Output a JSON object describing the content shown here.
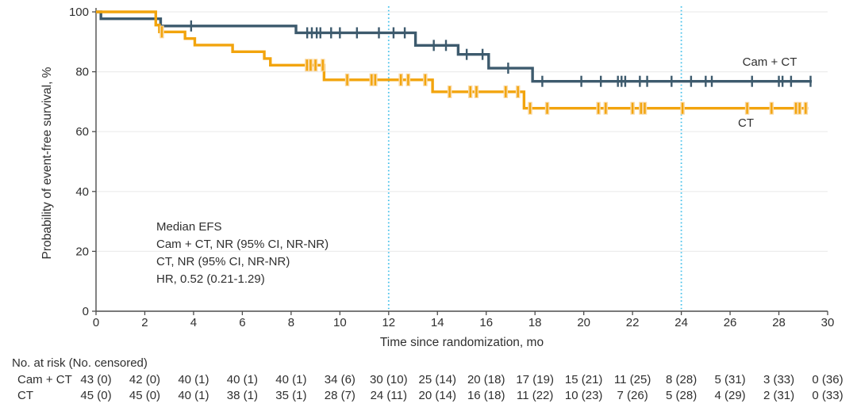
{
  "colors": {
    "camct": "#3d5a6d",
    "ct": "#f2a40d",
    "ct_halo": "#fad9a3",
    "reference_line": "#3fbfea",
    "gridline": "#ececec",
    "axis": "#4d4d4d",
    "text": "#2f2f2f"
  },
  "chart_data": {
    "type": "line",
    "subtype": "kaplan-meier-step",
    "title": "",
    "xlabel": "Time since randomization, mo",
    "ylabel": "Probability of event-free survival, %",
    "xlim": [
      0,
      30
    ],
    "ylim": [
      0,
      100
    ],
    "xticks": [
      0,
      2,
      4,
      6,
      8,
      10,
      12,
      14,
      16,
      18,
      20,
      22,
      24,
      26,
      28,
      30
    ],
    "yticks": [
      0,
      20,
      40,
      60,
      80,
      100
    ],
    "grid": "horizontal",
    "reference_lines_x": [
      12,
      24
    ],
    "legend_position": "end-of-curve-labels",
    "series": [
      {
        "name": "Cam + CT",
        "color_key": "camct",
        "steps": [
          [
            0,
            100
          ],
          [
            0.2,
            97.7
          ],
          [
            2.65,
            95.3
          ],
          [
            8.2,
            93.0
          ],
          [
            13.1,
            88.8
          ],
          [
            14.85,
            85.8
          ],
          [
            16.1,
            81.2
          ],
          [
            17.9,
            76.8
          ]
        ],
        "end_x": 29.35,
        "censor_marks": [
          [
            3.9,
            95.3
          ],
          [
            8.66,
            93.0
          ],
          [
            8.85,
            93.0
          ],
          [
            9.05,
            93.0
          ],
          [
            9.2,
            93.0
          ],
          [
            9.64,
            93.0
          ],
          [
            10.0,
            93.0
          ],
          [
            10.7,
            93.0
          ],
          [
            11.6,
            93.0
          ],
          [
            12.2,
            93.0
          ],
          [
            12.66,
            93.0
          ],
          [
            13.85,
            88.8
          ],
          [
            14.35,
            88.8
          ],
          [
            15.2,
            85.8
          ],
          [
            15.85,
            85.8
          ],
          [
            16.9,
            81.2
          ],
          [
            18.3,
            76.8
          ],
          [
            19.9,
            76.8
          ],
          [
            20.7,
            76.8
          ],
          [
            21.4,
            76.8
          ],
          [
            21.55,
            76.8
          ],
          [
            21.7,
            76.8
          ],
          [
            22.3,
            76.8
          ],
          [
            22.6,
            76.8
          ],
          [
            23.6,
            76.8
          ],
          [
            24.4,
            76.8
          ],
          [
            25.0,
            76.8
          ],
          [
            25.25,
            76.8
          ],
          [
            26.9,
            76.8
          ],
          [
            28.0,
            76.8
          ],
          [
            28.15,
            76.8
          ],
          [
            28.5,
            76.8
          ],
          [
            29.3,
            76.8
          ]
        ]
      },
      {
        "name": "CT",
        "color_key": "ct",
        "steps": [
          [
            0,
            100
          ],
          [
            2.45,
            95.6
          ],
          [
            2.6,
            93.3
          ],
          [
            3.65,
            91.1
          ],
          [
            4.05,
            88.9
          ],
          [
            5.6,
            86.7
          ],
          [
            6.9,
            84.4
          ],
          [
            7.15,
            82.2
          ],
          [
            9.35,
            77.3
          ],
          [
            13.8,
            73.3
          ],
          [
            17.55,
            67.8
          ]
        ],
        "end_x": 29.2,
        "censor_marks": [
          [
            2.7,
            93.3
          ],
          [
            8.65,
            82.2
          ],
          [
            8.8,
            82.2
          ],
          [
            9.0,
            82.2
          ],
          [
            9.3,
            82.2
          ],
          [
            10.3,
            77.3
          ],
          [
            11.3,
            77.3
          ],
          [
            11.45,
            77.3
          ],
          [
            12.5,
            77.3
          ],
          [
            12.8,
            77.3
          ],
          [
            13.5,
            77.3
          ],
          [
            14.5,
            73.3
          ],
          [
            15.35,
            73.3
          ],
          [
            15.6,
            73.3
          ],
          [
            16.8,
            73.3
          ],
          [
            17.3,
            73.3
          ],
          [
            17.8,
            67.8
          ],
          [
            18.5,
            67.8
          ],
          [
            20.6,
            67.8
          ],
          [
            20.9,
            67.8
          ],
          [
            22.0,
            67.8
          ],
          [
            22.35,
            67.8
          ],
          [
            22.5,
            67.8
          ],
          [
            24.05,
            67.8
          ],
          [
            26.7,
            67.8
          ],
          [
            27.7,
            67.8
          ],
          [
            28.7,
            67.8
          ],
          [
            28.85,
            67.8
          ],
          [
            29.1,
            67.8
          ]
        ]
      }
    ],
    "annotation": {
      "lines": [
        "Median EFS",
        "Cam + CT, NR (95% CI, NR-NR)",
        "CT, NR (95% CI, NR-NR)",
        "HR, 0.52 (0.21-1.29)"
      ]
    }
  },
  "risk_table": {
    "header": "No. at risk (No. censored)",
    "time_points": [
      0,
      2,
      4,
      6,
      8,
      10,
      12,
      14,
      16,
      18,
      20,
      22,
      24,
      26,
      28,
      30
    ],
    "rows": [
      {
        "label": "Cam + CT",
        "values": [
          "43 (0)",
          "42 (0)",
          "40 (1)",
          "40 (1)",
          "40 (1)",
          "34 (6)",
          "30 (10)",
          "25 (14)",
          "20 (18)",
          "17 (19)",
          "15 (21)",
          "11 (25)",
          "8 (28)",
          "5 (31)",
          "3 (33)",
          "0 (36)"
        ]
      },
      {
        "label": "CT",
        "values": [
          "45 (0)",
          "45 (0)",
          "40 (1)",
          "38 (1)",
          "35 (1)",
          "28 (7)",
          "24 (11)",
          "20 (14)",
          "16 (18)",
          "11 (22)",
          "10 (23)",
          "7 (26)",
          "5 (28)",
          "4 (29)",
          "2 (31)",
          "0 (33)"
        ]
      }
    ]
  }
}
